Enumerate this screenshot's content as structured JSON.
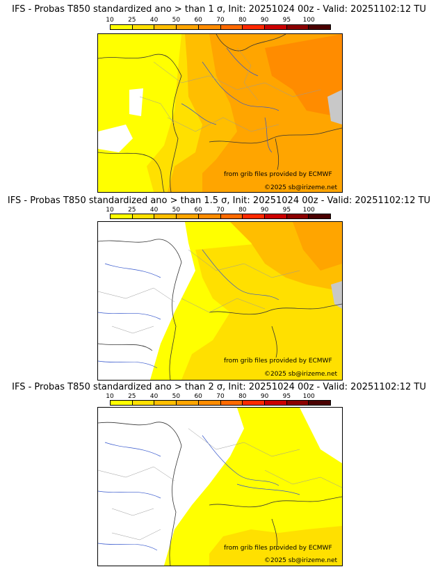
{
  "panels": [
    {
      "title": "IFS - Probas T850  standardized ano > than 1 σ, Init: 20251024 00z - Valid: 20251102:12 TU",
      "level": "1"
    },
    {
      "title": "IFS - Probas T850  standardized ano > than 1.5 σ, Init: 20251024 00z - Valid: 20251102:12 TU",
      "level": "1.5"
    },
    {
      "title": "IFS - Probas T850  standardized ano > than 2 σ, Init: 20251024 00z - Valid: 20251102:12 TU",
      "level": "2"
    }
  ],
  "scale": {
    "labels": [
      "10",
      "25",
      "40",
      "50",
      "60",
      "70",
      "80",
      "90",
      "95",
      "100"
    ],
    "colors": [
      "#ffff00",
      "#ffe000",
      "#ffbe00",
      "#ffa500",
      "#ff8c00",
      "#ff6a00",
      "#ff2a00",
      "#cc0000",
      "#8b0000",
      "#4a0000"
    ]
  },
  "credits": {
    "source": "from grib files provided by ECMWF",
    "copyright": "©2025 sb@irizeme.net"
  },
  "colors": {
    "none": "#ffffff",
    "p10": "#ffff00",
    "p25": "#ffe000",
    "p40": "#ffbe00",
    "p50": "#ffa500",
    "p60": "#ff8c00",
    "rivers": "#3355cc",
    "borders": "#333333",
    "admin": "#9a9a9a"
  }
}
